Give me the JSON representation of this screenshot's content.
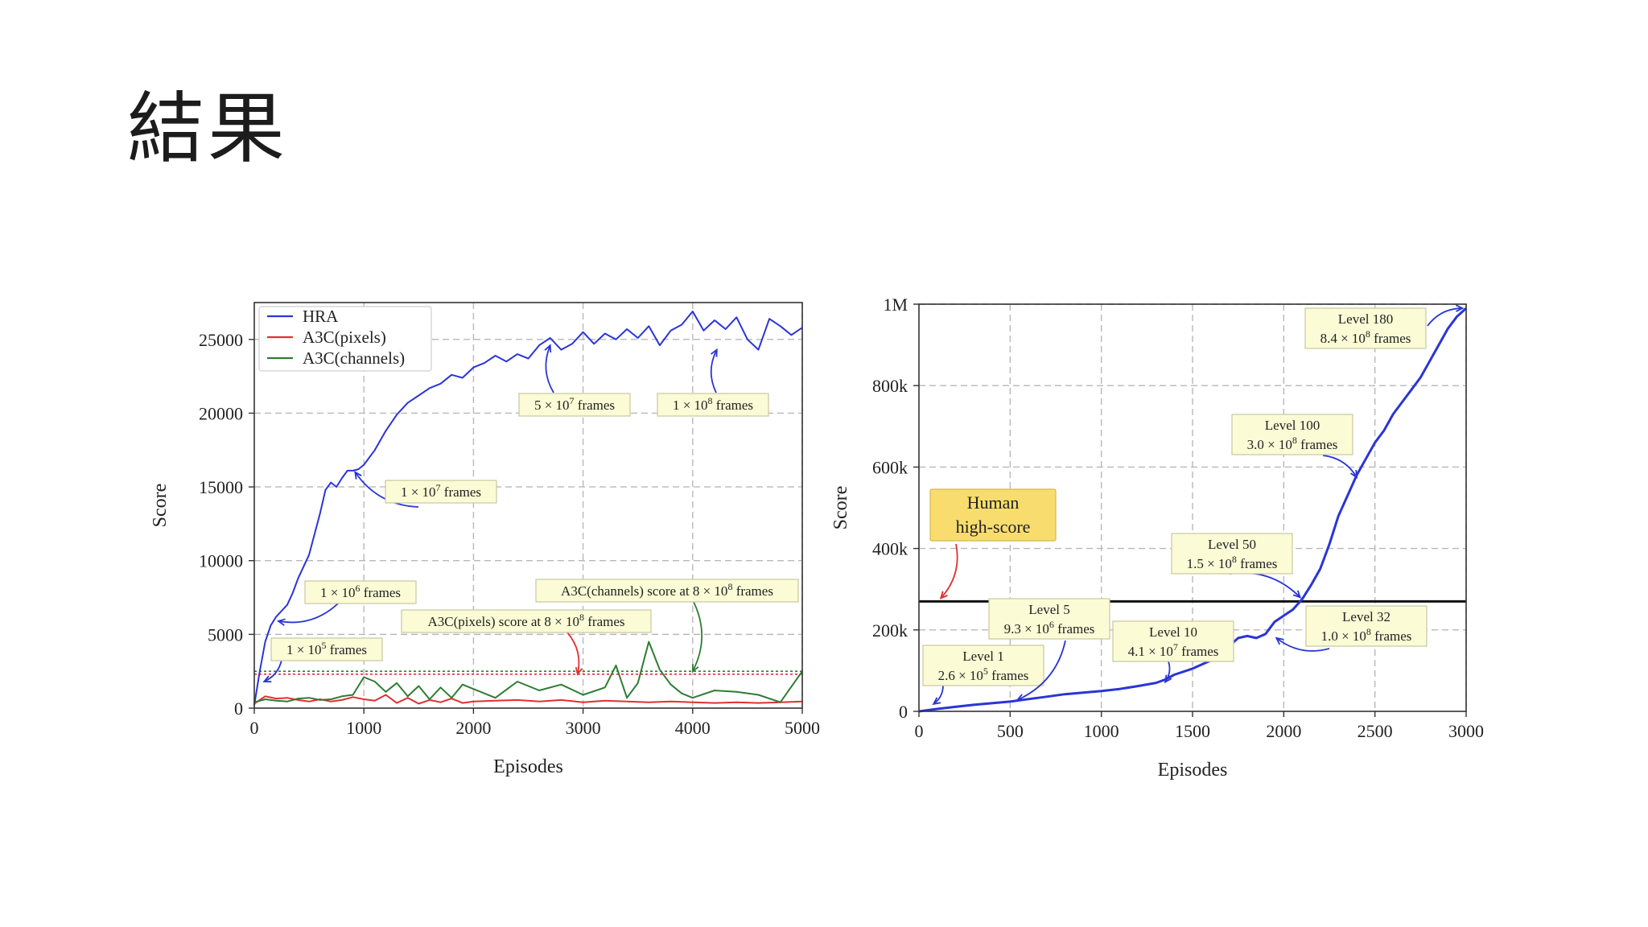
{
  "slide": {
    "title": "結果"
  },
  "chart_data": [
    {
      "type": "line",
      "xlabel": "Episodes",
      "ylabel": "Score",
      "xlim": [
        0,
        5000
      ],
      "ylim": [
        0,
        27500
      ],
      "xticks": [
        0,
        1000,
        2000,
        3000,
        4000,
        5000
      ],
      "xtick_labels": [
        "0",
        "1000",
        "2000",
        "3000",
        "4000",
        "5000"
      ],
      "yticks": [
        0,
        5000,
        10000,
        15000,
        20000,
        25000
      ],
      "ytick_labels": [
        "0",
        "5000",
        "10000",
        "15000",
        "20000",
        "25000"
      ],
      "grid": true,
      "legend_position": "top-left",
      "series": [
        {
          "name": "HRA",
          "color": "#2a35d6",
          "x": [
            0,
            50,
            100,
            150,
            200,
            250,
            300,
            350,
            400,
            450,
            500,
            550,
            600,
            650,
            700,
            750,
            800,
            850,
            900,
            950,
            1000,
            1100,
            1200,
            1300,
            1400,
            1500,
            1600,
            1700,
            1800,
            1900,
            2000,
            2100,
            2200,
            2300,
            2400,
            2500,
            2600,
            2700,
            2800,
            2900,
            3000,
            3100,
            3200,
            3300,
            3400,
            3500,
            3600,
            3700,
            3800,
            3900,
            4000,
            4100,
            4200,
            4300,
            4400,
            4500,
            4600,
            4700,
            4800,
            4900,
            5000
          ],
          "values": [
            200,
            2500,
            4500,
            5600,
            6200,
            6600,
            7000,
            7800,
            8800,
            9600,
            10400,
            11800,
            13200,
            14800,
            15300,
            15000,
            15600,
            16100,
            16100,
            16200,
            16500,
            17500,
            18800,
            19900,
            20700,
            21200,
            21700,
            22000,
            22600,
            22400,
            23100,
            23400,
            23900,
            23500,
            24000,
            23700,
            24600,
            25100,
            24300,
            24700,
            25500,
            24700,
            25400,
            25000,
            25700,
            25100,
            25900,
            24600,
            25600,
            26000,
            26900,
            25600,
            26300,
            25700,
            26500,
            25000,
            24300,
            26400,
            25900,
            25300,
            25800
          ]
        },
        {
          "name": "A3C(pixels)",
          "color": "#e03030",
          "x": [
            0,
            100,
            200,
            300,
            400,
            500,
            600,
            700,
            800,
            900,
            1000,
            1100,
            1200,
            1300,
            1400,
            1500,
            1600,
            1700,
            1800,
            1900,
            2000,
            2200,
            2400,
            2600,
            2800,
            3000,
            3200,
            3400,
            3600,
            3800,
            4000,
            4200,
            4400,
            4600,
            4800,
            5000
          ],
          "values": [
            300,
            800,
            650,
            700,
            550,
            450,
            600,
            450,
            550,
            750,
            600,
            500,
            900,
            350,
            700,
            300,
            550,
            400,
            650,
            350,
            450,
            500,
            550,
            450,
            550,
            400,
            500,
            450,
            400,
            450,
            400,
            350,
            400,
            350,
            400,
            450
          ]
        },
        {
          "name": "A3C(channels)",
          "color": "#2e7d32",
          "x": [
            0,
            100,
            200,
            300,
            400,
            500,
            600,
            700,
            800,
            900,
            1000,
            1100,
            1200,
            1300,
            1400,
            1500,
            1600,
            1700,
            1800,
            1900,
            2000,
            2200,
            2400,
            2600,
            2800,
            3000,
            3200,
            3300,
            3400,
            3500,
            3600,
            3700,
            3800,
            3900,
            4000,
            4200,
            4400,
            4600,
            4800,
            5000
          ],
          "values": [
            400,
            600,
            500,
            450,
            650,
            700,
            550,
            600,
            800,
            900,
            2100,
            1800,
            1100,
            1700,
            800,
            1500,
            600,
            1400,
            700,
            1600,
            1300,
            700,
            1800,
            1200,
            1600,
            900,
            1400,
            2900,
            700,
            1700,
            4500,
            2600,
            1600,
            1000,
            700,
            1200,
            1100,
            900,
            400,
            2500
          ]
        }
      ],
      "reference_lines": [
        {
          "name": "A3C(pixels) score at 8e8 frames",
          "value": 2300,
          "color": "#e03030",
          "style": "dotted"
        },
        {
          "name": "A3C(channels) score at 8e8 frames",
          "value": 2500,
          "color": "#2e7d32",
          "style": "dotted"
        }
      ],
      "annotations": [
        {
          "mantissa": "1 × 10",
          "exp": "5",
          "suffix": " frames",
          "x_data": 90,
          "y_data": 1800
        },
        {
          "mantissa": "1 × 10",
          "exp": "6",
          "suffix": " frames",
          "x_data": 220,
          "y_data": 5900
        },
        {
          "mantissa": "1 × 10",
          "exp": "7",
          "suffix": " frames",
          "x_data": 920,
          "y_data": 16000
        },
        {
          "mantissa": "5 × 10",
          "exp": "7",
          "suffix": " frames",
          "x_data": 2700,
          "y_data": 24600
        },
        {
          "mantissa": "1 × 10",
          "exp": "8",
          "suffix": " frames",
          "x_data": 4220,
          "y_data": 24300
        },
        {
          "mantissa": "A3C(pixels) score at 8 × 10",
          "exp": "8",
          "suffix": " frames",
          "x_data": 2950,
          "y_data": 2300
        },
        {
          "mantissa": "A3C(channels) score at 8 × 10",
          "exp": "8",
          "suffix": " frames",
          "x_data": 4000,
          "y_data": 2500
        }
      ]
    },
    {
      "type": "line",
      "xlabel": "Episodes",
      "ylabel": "Score",
      "xlim": [
        0,
        3000
      ],
      "ylim": [
        0,
        1000000
      ],
      "xticks": [
        0,
        500,
        1000,
        1500,
        2000,
        2500,
        3000
      ],
      "xtick_labels": [
        "0",
        "500",
        "1000",
        "1500",
        "2000",
        "2500",
        "3000"
      ],
      "yticks": [
        0,
        200000,
        400000,
        600000,
        800000,
        1000000
      ],
      "ytick_labels": [
        "0",
        "200k",
        "400k",
        "600k",
        "800k",
        "1M"
      ],
      "grid": true,
      "series": [
        {
          "name": "HRA",
          "color": "#2a35d6",
          "x": [
            0,
            50,
            100,
            200,
            300,
            400,
            500,
            600,
            700,
            800,
            900,
            1000,
            1100,
            1200,
            1300,
            1350,
            1400,
            1500,
            1600,
            1700,
            1750,
            1800,
            1850,
            1900,
            1950,
            2000,
            2050,
            2100,
            2150,
            2200,
            2250,
            2300,
            2350,
            2400,
            2450,
            2500,
            2550,
            2600,
            2650,
            2700,
            2750,
            2800,
            2850,
            2900,
            2950,
            3000
          ],
          "values": [
            0,
            3000,
            6000,
            11000,
            16000,
            20000,
            24000,
            30000,
            36000,
            42000,
            46000,
            50000,
            55000,
            62000,
            70000,
            78000,
            90000,
            105000,
            125000,
            160000,
            180000,
            185000,
            180000,
            190000,
            220000,
            235000,
            250000,
            275000,
            310000,
            350000,
            410000,
            480000,
            530000,
            580000,
            620000,
            660000,
            690000,
            730000,
            760000,
            790000,
            820000,
            860000,
            900000,
            940000,
            970000,
            990000
          ]
        }
      ],
      "reference_lines": [
        {
          "name": "Human high-score",
          "value": 270000,
          "color": "#111111",
          "style": "solid"
        }
      ],
      "human_label": [
        "Human",
        "high-score"
      ],
      "annotations": [
        {
          "line1": "Level 1",
          "mantissa": "2.6 × 10",
          "exp": "5",
          "suffix": " frames",
          "x_data": 80,
          "y_data": 18000
        },
        {
          "line1": "Level 5",
          "mantissa": "9.3 × 10",
          "exp": "6",
          "suffix": " frames",
          "x_data": 540,
          "y_data": 28000
        },
        {
          "line1": "Level 10",
          "mantissa": "4.1 × 10",
          "exp": "7",
          "suffix": " frames",
          "x_data": 1350,
          "y_data": 72000
        },
        {
          "line1": "Level 32",
          "mantissa": "1.0 × 10",
          "exp": "8",
          "suffix": " frames",
          "x_data": 1960,
          "y_data": 180000
        },
        {
          "line1": "Level 50",
          "mantissa": "1.5 × 10",
          "exp": "8",
          "suffix": " frames",
          "x_data": 2090,
          "y_data": 280000
        },
        {
          "line1": "Level 100",
          "mantissa": "3.0 × 10",
          "exp": "8",
          "suffix": " frames",
          "x_data": 2400,
          "y_data": 575000
        },
        {
          "line1": "Level 180",
          "mantissa": "8.4 × 10",
          "exp": "8",
          "suffix": " frames",
          "x_data": 2980,
          "y_data": 990000
        }
      ]
    }
  ]
}
